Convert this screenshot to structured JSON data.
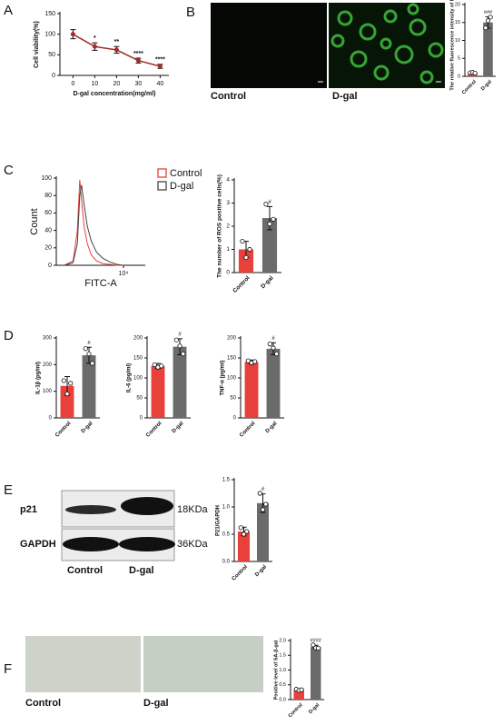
{
  "figure": {
    "panels": [
      "A",
      "B",
      "C",
      "D",
      "E",
      "F"
    ],
    "images": {
      "B": [
        "Control",
        "D-gal"
      ],
      "E_rows": [
        "p21",
        "GAPDH"
      ],
      "E_sizes": [
        "18KDa",
        "36KDa"
      ],
      "E": [
        "Control",
        "D-gal"
      ],
      "F": [
        "Control",
        "D-gal"
      ]
    }
  },
  "chart_data": [
    {
      "type": "line",
      "xlabel": "D-gal concentration(mg/ml)",
      "ylabel": "Cell viability(%)",
      "x": [
        0,
        10,
        20,
        30,
        40
      ],
      "values": [
        100,
        70,
        62,
        36,
        22
      ],
      "errors": [
        11,
        9,
        8,
        6,
        5
      ],
      "color": "#a52a2a",
      "annotations": [
        null,
        "*",
        "**",
        "****",
        "****"
      ],
      "xlim": [
        -6,
        44
      ],
      "xticks": [
        0,
        10,
        20,
        30,
        40
      ],
      "ylim": [
        0,
        150
      ],
      "yticks": [
        0,
        50,
        100,
        150
      ]
    },
    {
      "type": "bar",
      "ylabel": "The relative fluorescence intensity of ROS",
      "categories": [
        "Control",
        "D-gal"
      ],
      "values": [
        1,
        15
      ],
      "errors": [
        0.2,
        1.6
      ],
      "points": [
        [
          1.0,
          1.1,
          0.9
        ],
        [
          13.5,
          15.5,
          16.5
        ]
      ],
      "colors": [
        "#e8403a",
        "#6b6b6b"
      ],
      "annotations": [
        null,
        "###"
      ],
      "ylim": [
        0,
        20
      ],
      "yticks": [
        0,
        5,
        10,
        15,
        20
      ]
    },
    {
      "type": "line",
      "xlabel": "FITC-A",
      "ylabel": "Count",
      "xlog": true,
      "x": [
        3,
        10,
        18,
        25,
        32,
        45,
        70,
        120,
        250,
        600,
        1500,
        4000,
        10000
      ],
      "series": [
        {
          "name": "Control",
          "color": "#e8403a",
          "values": [
            0,
            5,
            40,
            98,
            75,
            45,
            25,
            12,
            5,
            2,
            1,
            0,
            0
          ]
        },
        {
          "name": "D-gal",
          "color": "#444444",
          "values": [
            0,
            3,
            25,
            80,
            92,
            70,
            45,
            28,
            15,
            8,
            4,
            1,
            0
          ]
        }
      ],
      "xlim": [
        1,
        200000
      ],
      "xticks": [
        {
          "value": 10000,
          "label": "10⁴"
        }
      ],
      "ylim": [
        0,
        100
      ],
      "yticks": [
        0,
        20,
        40,
        60,
        80,
        100
      ]
    },
    {
      "type": "bar",
      "ylabel": "The number of ROS positive cells(%)",
      "categories": [
        "Control",
        "D-gal"
      ],
      "values": [
        1.0,
        2.35
      ],
      "errors": [
        0.35,
        0.5
      ],
      "points": [
        [
          1.35,
          0.65,
          1.0
        ],
        [
          2.95,
          2.1,
          2.3
        ]
      ],
      "colors": [
        "#e8403a",
        "#6b6b6b"
      ],
      "annotations": [
        null,
        "#"
      ],
      "ylim": [
        0,
        4
      ],
      "yticks": [
        0,
        1,
        2,
        3,
        4
      ]
    },
    {
      "type": "bar",
      "ylabel": "IL-1β (pg/ml)",
      "categories": [
        "Control",
        "D-gal"
      ],
      "values": [
        120,
        235
      ],
      "errors": [
        35,
        30
      ],
      "points": [
        [
          140,
          90,
          130
        ],
        [
          260,
          240,
          205
        ]
      ],
      "colors": [
        "#e8403a",
        "#6b6b6b"
      ],
      "annotations": [
        null,
        "#"
      ],
      "ylim": [
        0,
        300
      ],
      "yticks": [
        0,
        100,
        200,
        300
      ]
    },
    {
      "type": "bar",
      "ylabel": "IL-6 (pg/ml)",
      "categories": [
        "Control",
        "D-gal"
      ],
      "values": [
        130,
        178
      ],
      "errors": [
        6,
        20
      ],
      "points": [
        [
          133,
          127,
          130
        ],
        [
          195,
          180,
          160
        ]
      ],
      "colors": [
        "#e8403a",
        "#6b6b6b"
      ],
      "annotations": [
        null,
        "#"
      ],
      "ylim": [
        0,
        200
      ],
      "yticks": [
        0,
        50,
        100,
        150,
        200
      ]
    },
    {
      "type": "bar",
      "ylabel": "TNF-α (pg/ml)",
      "categories": [
        "Control",
        "D-gal"
      ],
      "values": [
        140,
        173
      ],
      "errors": [
        5,
        15
      ],
      "points": [
        [
          143,
          138,
          141
        ],
        [
          185,
          175,
          160
        ]
      ],
      "colors": [
        "#e8403a",
        "#6b6b6b"
      ],
      "annotations": [
        null,
        "#"
      ],
      "ylim": [
        0,
        200
      ],
      "yticks": [
        0,
        50,
        100,
        150,
        200
      ]
    },
    {
      "type": "bar",
      "ylabel": "P21/GAPDH",
      "categories": [
        "Control",
        "D-gal"
      ],
      "values": [
        0.55,
        1.07
      ],
      "errors": [
        0.08,
        0.17
      ],
      "points": [
        [
          0.62,
          0.5,
          0.55
        ],
        [
          1.25,
          0.95,
          1.05
        ]
      ],
      "colors": [
        "#e8403a",
        "#6b6b6b"
      ],
      "annotations": [
        null,
        "#"
      ],
      "ylim": [
        0,
        1.5
      ],
      "yticks": [
        {
          "value": 0,
          "label": "0.0"
        },
        0.5,
        {
          "value": 1,
          "label": "1.0"
        },
        1.5
      ]
    },
    {
      "type": "bar",
      "ylabel": "Positive level of SA-β-gal",
      "categories": [
        "Control",
        "D-gal"
      ],
      "values": [
        0.33,
        1.78
      ],
      "errors": [
        0.03,
        0.06
      ],
      "points": [
        [
          0.35,
          0.31,
          0.33
        ],
        [
          1.85,
          1.75,
          1.74
        ]
      ],
      "colors": [
        "#e8403a",
        "#6b6b6b"
      ],
      "annotations": [
        null,
        "####"
      ],
      "ylim": [
        0,
        2
      ],
      "yticks": [
        {
          "value": 0,
          "label": "0.0"
        },
        0.5,
        {
          "value": 1,
          "label": "1.0"
        },
        1.5,
        {
          "value": 2,
          "label": "2.0"
        }
      ]
    }
  ]
}
